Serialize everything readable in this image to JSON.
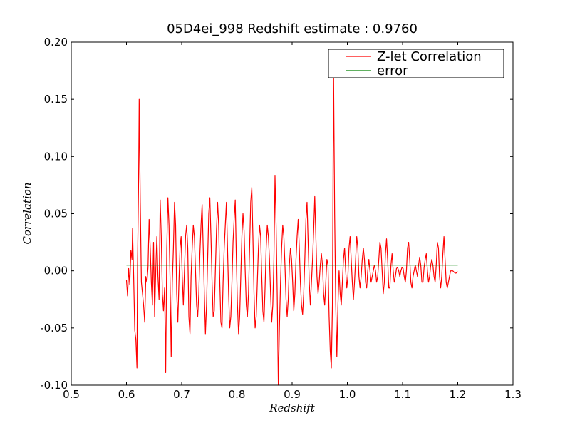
{
  "chart_data": {
    "type": "line",
    "title": "05D4ei_998 Redshift estimate : 0.9760",
    "xlabel": "Redshift",
    "ylabel": "Correlation",
    "xlim": [
      0.5,
      1.3
    ],
    "ylim": [
      -0.1,
      0.2
    ],
    "x_ticks": [
      "0.5",
      "0.6",
      "0.7",
      "0.8",
      "0.9",
      "1.0",
      "1.1",
      "1.2",
      "1.3"
    ],
    "y_ticks": [
      "-0.10",
      "-0.05",
      "0.00",
      "0.05",
      "0.10",
      "0.15",
      "0.20"
    ],
    "grid": false,
    "legend_position": "top-right",
    "series": [
      {
        "name": "Z-let Correlation",
        "color": "#ff0000",
        "points": [
          [
            0.6,
            -0.008
          ],
          [
            0.602,
            -0.022
          ],
          [
            0.604,
            0.002
          ],
          [
            0.606,
            -0.012
          ],
          [
            0.608,
            0.018
          ],
          [
            0.61,
            0.01
          ],
          [
            0.611,
            0.037
          ],
          [
            0.613,
            -0.005
          ],
          [
            0.615,
            -0.052
          ],
          [
            0.617,
            -0.06
          ],
          [
            0.619,
            -0.085
          ],
          [
            0.62,
            0.005
          ],
          [
            0.622,
            0.08
          ],
          [
            0.623,
            0.15
          ],
          [
            0.625,
            0.06
          ],
          [
            0.627,
            -0.01
          ],
          [
            0.629,
            -0.02
          ],
          [
            0.631,
            -0.03
          ],
          [
            0.633,
            -0.045
          ],
          [
            0.635,
            -0.005
          ],
          [
            0.637,
            -0.01
          ],
          [
            0.639,
            0.003
          ],
          [
            0.641,
            0.045
          ],
          [
            0.643,
            0.02
          ],
          [
            0.645,
            -0.01
          ],
          [
            0.647,
            -0.03
          ],
          [
            0.649,
            0.025
          ],
          [
            0.651,
            -0.04
          ],
          [
            0.653,
            0.0
          ],
          [
            0.655,
            0.03
          ],
          [
            0.657,
            -0.005
          ],
          [
            0.659,
            -0.025
          ],
          [
            0.661,
            0.062
          ],
          [
            0.663,
            0.03
          ],
          [
            0.665,
            -0.02
          ],
          [
            0.667,
            -0.035
          ],
          [
            0.669,
            -0.015
          ],
          [
            0.671,
            -0.089
          ],
          [
            0.673,
            0.02
          ],
          [
            0.675,
            0.064
          ],
          [
            0.677,
            0.04
          ],
          [
            0.679,
            -0.01
          ],
          [
            0.681,
            -0.075
          ],
          [
            0.683,
            -0.01
          ],
          [
            0.685,
            0.02
          ],
          [
            0.687,
            0.06
          ],
          [
            0.689,
            0.04
          ],
          [
            0.691,
            -0.02
          ],
          [
            0.693,
            -0.045
          ],
          [
            0.695,
            -0.01
          ],
          [
            0.697,
            0.02
          ],
          [
            0.699,
            0.03
          ],
          [
            0.701,
            -0.005
          ],
          [
            0.703,
            -0.03
          ],
          [
            0.705,
            0.0
          ],
          [
            0.707,
            0.03
          ],
          [
            0.709,
            0.04
          ],
          [
            0.711,
            0.02
          ],
          [
            0.713,
            -0.04
          ],
          [
            0.715,
            -0.055
          ],
          [
            0.717,
            -0.005
          ],
          [
            0.719,
            0.02
          ],
          [
            0.721,
            0.04
          ],
          [
            0.723,
            0.03
          ],
          [
            0.725,
            0.0
          ],
          [
            0.727,
            -0.03
          ],
          [
            0.729,
            -0.04
          ],
          [
            0.731,
            -0.02
          ],
          [
            0.733,
            0.015
          ],
          [
            0.735,
            0.04
          ],
          [
            0.737,
            0.058
          ],
          [
            0.739,
            0.02
          ],
          [
            0.741,
            -0.02
          ],
          [
            0.743,
            -0.055
          ],
          [
            0.745,
            -0.03
          ],
          [
            0.747,
            0.01
          ],
          [
            0.749,
            0.05
          ],
          [
            0.751,
            0.064
          ],
          [
            0.753,
            0.03
          ],
          [
            0.755,
            -0.01
          ],
          [
            0.757,
            -0.04
          ],
          [
            0.759,
            -0.035
          ],
          [
            0.761,
            0.0
          ],
          [
            0.763,
            0.035
          ],
          [
            0.765,
            0.06
          ],
          [
            0.767,
            0.04
          ],
          [
            0.769,
            -0.01
          ],
          [
            0.771,
            -0.045
          ],
          [
            0.773,
            -0.05
          ],
          [
            0.775,
            -0.01
          ],
          [
            0.777,
            0.02
          ],
          [
            0.779,
            0.04
          ],
          [
            0.781,
            0.06
          ],
          [
            0.783,
            0.02
          ],
          [
            0.785,
            -0.02
          ],
          [
            0.787,
            -0.05
          ],
          [
            0.789,
            -0.04
          ],
          [
            0.791,
            -0.01
          ],
          [
            0.793,
            0.025
          ],
          [
            0.795,
            0.045
          ],
          [
            0.797,
            0.062
          ],
          [
            0.799,
            0.01
          ],
          [
            0.801,
            -0.03
          ],
          [
            0.803,
            -0.055
          ],
          [
            0.805,
            -0.04
          ],
          [
            0.807,
            -0.005
          ],
          [
            0.809,
            0.03
          ],
          [
            0.811,
            0.05
          ],
          [
            0.813,
            0.035
          ],
          [
            0.815,
            0.0
          ],
          [
            0.817,
            -0.03
          ],
          [
            0.819,
            -0.04
          ],
          [
            0.821,
            -0.02
          ],
          [
            0.823,
            0.02
          ],
          [
            0.825,
            0.06
          ],
          [
            0.827,
            0.073
          ],
          [
            0.829,
            0.03
          ],
          [
            0.831,
            -0.02
          ],
          [
            0.833,
            -0.05
          ],
          [
            0.835,
            -0.04
          ],
          [
            0.837,
            -0.01
          ],
          [
            0.839,
            0.02
          ],
          [
            0.841,
            0.04
          ],
          [
            0.843,
            0.03
          ],
          [
            0.845,
            -0.005
          ],
          [
            0.847,
            -0.035
          ],
          [
            0.849,
            -0.045
          ],
          [
            0.851,
            -0.015
          ],
          [
            0.853,
            0.02
          ],
          [
            0.855,
            0.04
          ],
          [
            0.857,
            0.03
          ],
          [
            0.859,
            0.01
          ],
          [
            0.861,
            -0.02
          ],
          [
            0.863,
            -0.045
          ],
          [
            0.865,
            -0.03
          ],
          [
            0.867,
            0.01
          ],
          [
            0.869,
            0.083
          ],
          [
            0.871,
            0.04
          ],
          [
            0.873,
            -0.02
          ],
          [
            0.875,
            -0.1
          ],
          [
            0.877,
            -0.05
          ],
          [
            0.879,
            -0.01
          ],
          [
            0.881,
            0.02
          ],
          [
            0.883,
            0.04
          ],
          [
            0.885,
            0.03
          ],
          [
            0.887,
            0.005
          ],
          [
            0.889,
            -0.025
          ],
          [
            0.891,
            -0.04
          ],
          [
            0.893,
            -0.025
          ],
          [
            0.895,
            0.005
          ],
          [
            0.897,
            0.02
          ],
          [
            0.899,
            0.01
          ],
          [
            0.901,
            -0.01
          ],
          [
            0.903,
            -0.035
          ],
          [
            0.905,
            -0.02
          ],
          [
            0.907,
            0.01
          ],
          [
            0.909,
            0.03
          ],
          [
            0.911,
            0.045
          ],
          [
            0.913,
            0.02
          ],
          [
            0.915,
            -0.01
          ],
          [
            0.917,
            -0.03
          ],
          [
            0.919,
            -0.038
          ],
          [
            0.921,
            -0.02
          ],
          [
            0.923,
            0.01
          ],
          [
            0.925,
            0.045
          ],
          [
            0.927,
            0.06
          ],
          [
            0.929,
            0.025
          ],
          [
            0.931,
            -0.01
          ],
          [
            0.933,
            -0.03
          ],
          [
            0.935,
            -0.01
          ],
          [
            0.937,
            0.01
          ],
          [
            0.939,
            0.035
          ],
          [
            0.941,
            0.065
          ],
          [
            0.943,
            0.03
          ],
          [
            0.945,
            -0.005
          ],
          [
            0.947,
            -0.02
          ],
          [
            0.949,
            -0.01
          ],
          [
            0.951,
            0.005
          ],
          [
            0.953,
            0.015
          ],
          [
            0.955,
            0.005
          ],
          [
            0.957,
            -0.02
          ],
          [
            0.959,
            -0.03
          ],
          [
            0.961,
            -0.01
          ],
          [
            0.963,
            0.01
          ],
          [
            0.965,
            0.005
          ],
          [
            0.967,
            -0.04
          ],
          [
            0.969,
            -0.07
          ],
          [
            0.971,
            -0.085
          ],
          [
            0.973,
            -0.03
          ],
          [
            0.975,
            0.178
          ],
          [
            0.977,
            0.05
          ],
          [
            0.979,
            -0.03
          ],
          [
            0.981,
            -0.075
          ],
          [
            0.983,
            -0.03
          ],
          [
            0.985,
            0.0
          ],
          [
            0.987,
            -0.02
          ],
          [
            0.989,
            -0.03
          ],
          [
            0.991,
            -0.01
          ],
          [
            0.993,
            0.01
          ],
          [
            0.995,
            0.02
          ],
          [
            0.997,
            0.0
          ],
          [
            0.999,
            -0.015
          ],
          [
            1.001,
            -0.005
          ],
          [
            1.003,
            0.02
          ],
          [
            1.005,
            0.03
          ],
          [
            1.007,
            0.01
          ],
          [
            1.009,
            -0.01
          ],
          [
            1.011,
            -0.025
          ],
          [
            1.013,
            -0.01
          ],
          [
            1.015,
            0.01
          ],
          [
            1.017,
            0.03
          ],
          [
            1.019,
            0.02
          ],
          [
            1.021,
            -0.005
          ],
          [
            1.023,
            -0.015
          ],
          [
            1.025,
            -0.005
          ],
          [
            1.027,
            0.01
          ],
          [
            1.029,
            0.02
          ],
          [
            1.031,
            0.01
          ],
          [
            1.033,
            -0.01
          ],
          [
            1.035,
            -0.015
          ],
          [
            1.037,
            0.0
          ],
          [
            1.039,
            0.01
          ],
          [
            1.041,
            0.0
          ],
          [
            1.043,
            -0.01
          ],
          [
            1.045,
            -0.005
          ],
          [
            1.047,
            0.0
          ],
          [
            1.049,
            0.005
          ],
          [
            1.051,
            0.0
          ],
          [
            1.053,
            -0.01
          ],
          [
            1.055,
            -0.005
          ],
          [
            1.057,
            0.01
          ],
          [
            1.059,
            0.025
          ],
          [
            1.061,
            0.02
          ],
          [
            1.063,
            0.0
          ],
          [
            1.065,
            -0.02
          ],
          [
            1.067,
            -0.01
          ],
          [
            1.069,
            0.015
          ],
          [
            1.071,
            0.028
          ],
          [
            1.073,
            0.01
          ],
          [
            1.075,
            -0.015
          ],
          [
            1.077,
            -0.015
          ],
          [
            1.079,
            0.005
          ],
          [
            1.081,
            0.015
          ],
          [
            1.083,
            0.0
          ],
          [
            1.085,
            -0.01
          ],
          [
            1.087,
            -0.005
          ],
          [
            1.089,
            0.002
          ],
          [
            1.091,
            0.003
          ],
          [
            1.093,
            0.0
          ],
          [
            1.095,
            -0.005
          ],
          [
            1.097,
            0.0
          ],
          [
            1.099,
            0.003
          ],
          [
            1.101,
            0.002
          ],
          [
            1.103,
            -0.005
          ],
          [
            1.105,
            -0.01
          ],
          [
            1.107,
            0.0
          ],
          [
            1.109,
            0.02
          ],
          [
            1.111,
            0.025
          ],
          [
            1.113,
            0.01
          ],
          [
            1.115,
            -0.01
          ],
          [
            1.117,
            -0.015
          ],
          [
            1.119,
            -0.005
          ],
          [
            1.121,
            0.0
          ],
          [
            1.123,
            0.005
          ],
          [
            1.125,
            0.0
          ],
          [
            1.127,
            -0.005
          ],
          [
            1.129,
            0.005
          ],
          [
            1.131,
            0.012
          ],
          [
            1.133,
            0.005
          ],
          [
            1.135,
            -0.01
          ],
          [
            1.137,
            -0.01
          ],
          [
            1.139,
            0.003
          ],
          [
            1.141,
            0.01
          ],
          [
            1.143,
            0.015
          ],
          [
            1.145,
            0.0
          ],
          [
            1.147,
            -0.01
          ],
          [
            1.149,
            -0.005
          ],
          [
            1.151,
            0.005
          ],
          [
            1.153,
            0.01
          ],
          [
            1.155,
            0.005
          ],
          [
            1.157,
            -0.005
          ],
          [
            1.159,
            -0.01
          ],
          [
            1.161,
            0.005
          ],
          [
            1.163,
            0.025
          ],
          [
            1.165,
            0.02
          ],
          [
            1.167,
            -0.005
          ],
          [
            1.169,
            -0.015
          ],
          [
            1.171,
            -0.005
          ],
          [
            1.173,
            0.015
          ],
          [
            1.175,
            0.03
          ],
          [
            1.177,
            0.01
          ],
          [
            1.179,
            -0.01
          ],
          [
            1.181,
            -0.015
          ],
          [
            1.183,
            -0.01
          ],
          [
            1.185,
            -0.005
          ],
          [
            1.187,
            0.0
          ],
          [
            1.189,
            0.0
          ],
          [
            1.191,
            0.0
          ],
          [
            1.193,
            -0.001
          ],
          [
            1.195,
            -0.002
          ],
          [
            1.197,
            -0.002
          ],
          [
            1.199,
            -0.001
          ],
          [
            1.2,
            -0.001
          ]
        ]
      },
      {
        "name": "error",
        "color": "#008000",
        "points": [
          [
            0.6,
            0.005
          ],
          [
            1.2,
            0.005
          ]
        ]
      }
    ],
    "marker": {
      "shape": "downward-triangle",
      "x": 0.976,
      "y": 0.18
    }
  }
}
